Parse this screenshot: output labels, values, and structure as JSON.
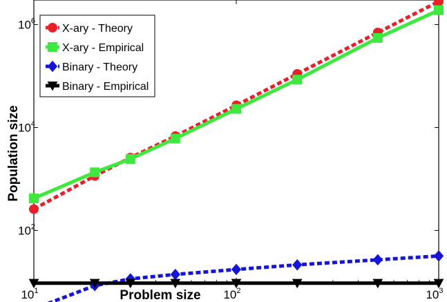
{
  "chart_data": {
    "type": "line",
    "xlabel": "Problem size",
    "ylabel": "Population size",
    "xscale": "log",
    "yscale": "log",
    "xlim": [
      10,
      1000
    ],
    "ylim": [
      10,
      3000000
    ],
    "x_ticks": [
      10,
      100,
      1000
    ],
    "x_tick_labels": [
      {
        "base": "10",
        "exp": "1"
      },
      {
        "base": "10",
        "exp": "2"
      },
      {
        "base": "10",
        "exp": "3"
      }
    ],
    "y_ticks": [
      100,
      10000,
      1000000
    ],
    "y_tick_labels": [
      {
        "base": "10",
        "exp": "2"
      },
      {
        "base": "10",
        "exp": "4"
      },
      {
        "base": "10",
        "exp": "6"
      }
    ],
    "grid": false,
    "legend_position": "top-left",
    "series": [
      {
        "name": "X-ary - Theory",
        "color": "#e8202a",
        "line": "dashed",
        "marker": "circle",
        "x": [
          10,
          20,
          30,
          50,
          100,
          200,
          500,
          1000
        ],
        "y": [
          260,
          1150,
          2600,
          6800,
          27000,
          110000,
          700000,
          2800000
        ]
      },
      {
        "name": "X-ary - Empirical",
        "color": "#3ee83e",
        "line": "solid",
        "marker": "square",
        "x": [
          10,
          20,
          30,
          50,
          100,
          200,
          500,
          1000
        ],
        "y": [
          420,
          1350,
          2450,
          6100,
          23000,
          85000,
          550000,
          1900000
        ]
      },
      {
        "name": "Binary - Theory",
        "color": "#1515d8",
        "line": "dashed",
        "marker": "diamond",
        "x": [
          10,
          20,
          30,
          50,
          100,
          200,
          500,
          1000
        ],
        "y": [
          3,
          8.5,
          11.5,
          14,
          17.5,
          21.5,
          27,
          32
        ]
      },
      {
        "name": "Binary - Empirical",
        "color": "#000000",
        "line": "solid",
        "marker": "triangle-down",
        "x": [
          10,
          20,
          30,
          50,
          100,
          200,
          500,
          1000
        ],
        "y": [
          9.5,
          9.5,
          9.5,
          9.5,
          9.5,
          9.5,
          9.5,
          9.5
        ]
      }
    ]
  }
}
